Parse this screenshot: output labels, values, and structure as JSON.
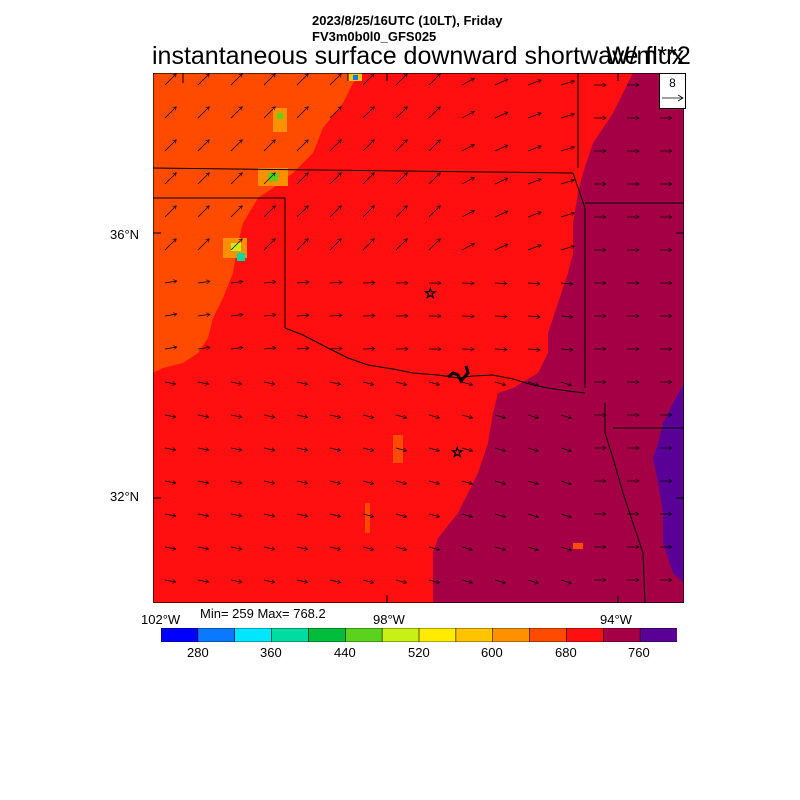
{
  "header": {
    "line1": "2023/8/25/16UTC (10LT), Friday",
    "line2": "FV3m0b0l0_GFS025",
    "title": "instantaneous surface downward shortwave flux",
    "units": "W/m**2"
  },
  "stats": {
    "text": "Min= 259 Max= 768.2"
  },
  "axes": {
    "lon_labels": [
      "102°W",
      "98°W",
      "94°W"
    ],
    "lat_labels": [
      "36°N",
      "32°N"
    ]
  },
  "reference_vector": {
    "value": "8"
  },
  "colorbar": {
    "colors": [
      "#0000ff",
      "#0a78ff",
      "#00e6ff",
      "#00dca0",
      "#00be3c",
      "#5ad21e",
      "#c8f014",
      "#ffeb00",
      "#ffc300",
      "#ff9100",
      "#ff4b00",
      "#ff0f0f",
      "#a50046",
      "#5a0096"
    ],
    "tick_labels": [
      "280",
      "360",
      "440",
      "520",
      "600",
      "680",
      "760"
    ]
  },
  "map_colors": {
    "orange_region": "#ff4b00",
    "red_region": "#ff0f0f",
    "purple_region": "#a50046",
    "darkpurple_region": "#5a0096"
  }
}
